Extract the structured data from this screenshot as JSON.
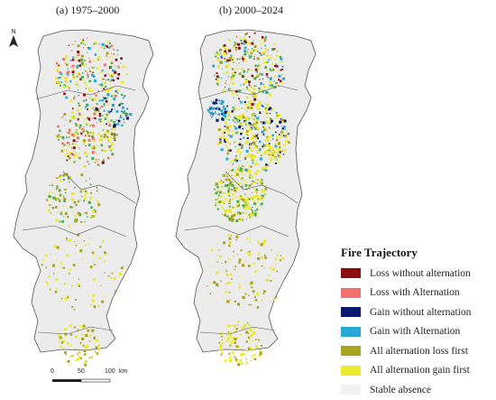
{
  "panels": [
    {
      "title": "(a) 1975–2000"
    },
    {
      "title": "(b) 2000–2024"
    }
  ],
  "north_arrow": {
    "label": "N"
  },
  "scale_bar": {
    "labels": [
      "0",
      "50",
      "100",
      "km"
    ]
  },
  "legend": {
    "title": "Fire Trajectory",
    "items": [
      {
        "label": "Loss without alternation",
        "color": "#8b0f0f"
      },
      {
        "label": "Loss with Alternation",
        "color": "#f07070"
      },
      {
        "label": "Gain without alternation",
        "color": "#0a1a6e"
      },
      {
        "label": "Gain with Alternation",
        "color": "#27a8d6"
      },
      {
        "label": "All alternation loss first",
        "color": "#a9a420"
      },
      {
        "label": "All alternation gain first",
        "color": "#ecea2a"
      },
      {
        "label": "Stable absence",
        "color": "#f1f1f1"
      }
    ]
  },
  "colors": {
    "land": "#ececec",
    "border": "#555555",
    "green": "#4caf50"
  }
}
